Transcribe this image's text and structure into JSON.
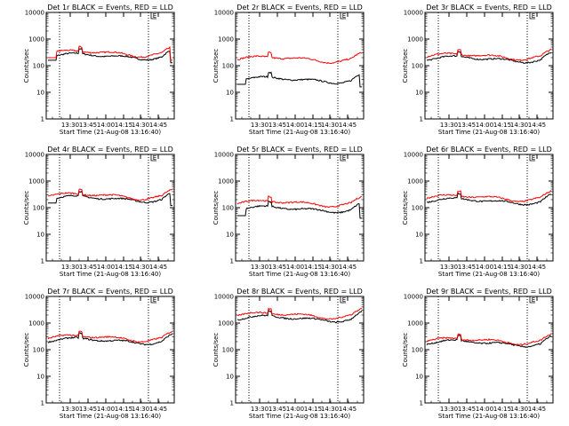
{
  "chart_data": [
    {
      "type": "line",
      "title": "Det 1r BLACK = Events, RED = LLD",
      "xlabel": "Start Time (21-Aug-08 13:16:40)",
      "ylabel": "Counts/sec",
      "yscale": "log",
      "ylim": [
        1,
        10000
      ],
      "yticks": [
        "1",
        "10",
        "100",
        "1000",
        "10000"
      ],
      "xticks": [
        "13:30",
        "13:45",
        "14:00",
        "14:15",
        "14:30",
        "14:45"
      ],
      "marker_label": "E",
      "series": [
        {
          "color": "#000000",
          "level": 230,
          "dip_end": 160,
          "spike": 60
        },
        {
          "color": "#ff0000",
          "level": 300,
          "dip_end": 200,
          "spike": 0
        }
      ]
    },
    {
      "type": "line",
      "title": "Det 2r BLACK = Events, RED = LLD",
      "xlabel": "Start Time (21-Aug-08 13:16:40)",
      "ylabel": "Counts/sec",
      "yscale": "log",
      "ylim": [
        1,
        10000
      ],
      "yticks": [
        "1",
        "10",
        "100",
        "1000",
        "10000"
      ],
      "xticks": [
        "13:30",
        "13:45",
        "14:00",
        "14:15",
        "14:30",
        "14:45"
      ],
      "marker_label": "E",
      "series": [
        {
          "color": "#000000",
          "level": 30,
          "dip_end": 20,
          "spike": 0
        },
        {
          "color": "#ff0000",
          "level": 180,
          "dip_end": 0,
          "spike": 0
        }
      ]
    },
    {
      "type": "line",
      "title": "Det 3r BLACK = Events, RED = LLD",
      "xlabel": "Start Time (21-Aug-08 13:16:40)",
      "ylabel": "Counts/sec",
      "yscale": "log",
      "ylim": [
        1,
        10000
      ],
      "yticks": [
        "1",
        "10",
        "100",
        "1000",
        "10000"
      ],
      "xticks": [
        "13:30",
        "13:45",
        "14:00",
        "14:15",
        "14:30",
        "14:45"
      ],
      "marker_label": "E",
      "series": [
        {
          "color": "#000000",
          "level": 180,
          "dip_end": 0,
          "spike": 0
        },
        {
          "color": "#ff0000",
          "level": 230,
          "dip_end": 0,
          "spike": 0
        }
      ]
    },
    {
      "type": "line",
      "title": "Det 4r BLACK = Events, RED = LLD",
      "xlabel": "Start Time (21-Aug-08 13:16:40)",
      "ylabel": "Counts/sec",
      "yscale": "log",
      "ylim": [
        1,
        10000
      ],
      "yticks": [
        "1",
        "10",
        "100",
        "1000",
        "10000"
      ],
      "xticks": [
        "13:30",
        "13:45",
        "14:00",
        "14:15",
        "14:30",
        "14:45"
      ],
      "marker_label": "E",
      "series": [
        {
          "color": "#000000",
          "level": 220,
          "dip_end": 150,
          "spike": 0
        },
        {
          "color": "#ff0000",
          "level": 280,
          "dip_end": 0,
          "spike": 0
        }
      ]
    },
    {
      "type": "line",
      "title": "Det 5r BLACK = Events, RED = LLD",
      "xlabel": "Start Time (21-Aug-08 13:16:40)",
      "ylabel": "Counts/sec",
      "yscale": "log",
      "ylim": [
        1,
        10000
      ],
      "yticks": [
        "1",
        "10",
        "100",
        "1000",
        "10000"
      ],
      "xticks": [
        "13:30",
        "13:45",
        "14:00",
        "14:15",
        "14:30",
        "14:45"
      ],
      "marker_label": "E",
      "series": [
        {
          "color": "#000000",
          "level": 90,
          "dip_end": 50,
          "spike": 0
        },
        {
          "color": "#ff0000",
          "level": 150,
          "dip_end": 0,
          "spike": 0
        }
      ]
    },
    {
      "type": "line",
      "title": "Det 6r BLACK = Events, RED = LLD",
      "xlabel": "Start Time (21-Aug-08 13:16:40)",
      "ylabel": "Counts/sec",
      "yscale": "log",
      "ylim": [
        1,
        10000
      ],
      "yticks": [
        "1",
        "10",
        "100",
        "1000",
        "10000"
      ],
      "xticks": [
        "13:30",
        "13:45",
        "14:00",
        "14:15",
        "14:30",
        "14:45"
      ],
      "marker_label": "E",
      "series": [
        {
          "color": "#000000",
          "level": 180,
          "dip_end": 0,
          "spike": 0
        },
        {
          "color": "#ff0000",
          "level": 240,
          "dip_end": 0,
          "spike": 0
        }
      ]
    },
    {
      "type": "line",
      "title": "Det 7r BLACK = Events, RED = LLD",
      "xlabel": "Start Time (21-Aug-08 13:16:40)",
      "ylabel": "Counts/sec",
      "yscale": "log",
      "ylim": [
        1,
        10000
      ],
      "yticks": [
        "1",
        "10",
        "100",
        "1000",
        "10000"
      ],
      "xticks": [
        "13:30",
        "13:45",
        "14:00",
        "14:15",
        "14:30",
        "14:45"
      ],
      "marker_label": "E",
      "series": [
        {
          "color": "#000000",
          "level": 220,
          "dip_end": 0,
          "spike": 0
        },
        {
          "color": "#ff0000",
          "level": 280,
          "dip_end": 0,
          "spike": 0
        }
      ]
    },
    {
      "type": "line",
      "title": "Det 8r BLACK = Events, RED = LLD",
      "xlabel": "Start Time (21-Aug-08 13:16:40)",
      "ylabel": "Counts/sec",
      "yscale": "log",
      "ylim": [
        1,
        10000
      ],
      "yticks": [
        "1",
        "10",
        "100",
        "1000",
        "10000"
      ],
      "xticks": [
        "13:30",
        "13:45",
        "14:00",
        "14:15",
        "14:30",
        "14:45"
      ],
      "marker_label": "E",
      "series": [
        {
          "color": "#000000",
          "level": 1500,
          "dip_end": 0,
          "spike": 0
        },
        {
          "color": "#ff0000",
          "level": 2000,
          "dip_end": 0,
          "spike": 0
        }
      ]
    },
    {
      "type": "line",
      "title": "Det 9r BLACK = Events, RED = LLD",
      "xlabel": "Start Time (21-Aug-08 13:16:40)",
      "ylabel": "Counts/sec",
      "yscale": "log",
      "ylim": [
        1,
        10000
      ],
      "yticks": [
        "1",
        "10",
        "100",
        "1000",
        "10000"
      ],
      "xticks": [
        "13:30",
        "13:45",
        "14:00",
        "14:15",
        "14:30",
        "14:45"
      ],
      "marker_label": "E",
      "series": [
        {
          "color": "#000000",
          "level": 180,
          "dip_end": 0,
          "spike": 0
        },
        {
          "color": "#ff0000",
          "level": 220,
          "dip_end": 0,
          "spike": 0
        }
      ]
    }
  ]
}
